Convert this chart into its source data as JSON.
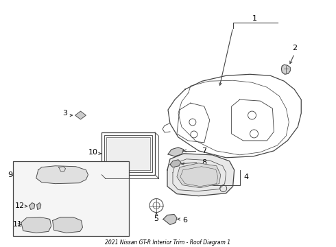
{
  "title": "2021 Nissan GT-R Interior Trim - Roof Diagram 1",
  "bg_color": "#ffffff",
  "line_color": "#444444",
  "label_color": "#000000",
  "fig_width": 4.9,
  "fig_height": 3.6,
  "dpi": 100
}
